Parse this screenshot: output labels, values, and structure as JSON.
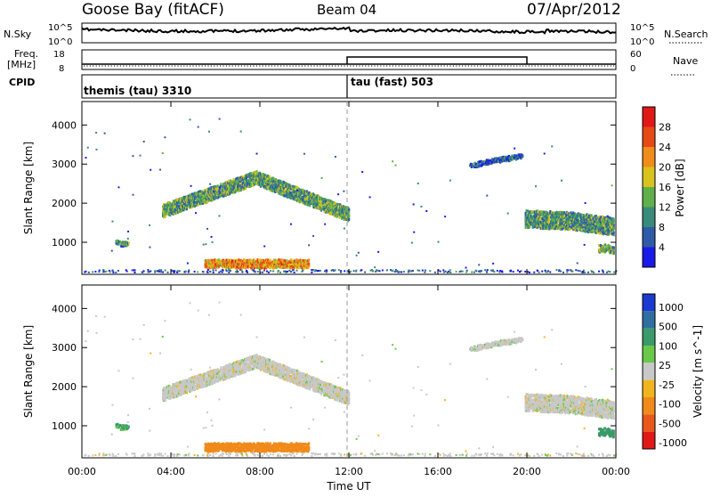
{
  "header": {
    "station": "Goose Bay (fitACF)",
    "beam": "Beam 04",
    "date": "07/Apr/2012"
  },
  "panels": {
    "nsky_label": "N.Sky",
    "nsky_ticks": [
      "10^5",
      "10^0"
    ],
    "nsearch_label": "N.Search",
    "nsearch_ticks": [
      "10^5",
      "10^0"
    ],
    "freq_label_1": "Freq.",
    "freq_label_2": "[MHz]",
    "freq_ticks": [
      "18",
      "8"
    ],
    "nave_label": "Nave",
    "nave_ticks": [
      "60",
      "0"
    ],
    "cpid_label": "CPID",
    "cpid_modes": [
      "themis (tau) 3310",
      "tau (fast) 503"
    ]
  },
  "chart_data": {
    "type": "heatmap",
    "xlabel": "Time UT",
    "x_ticks": [
      "00:00",
      "04:00",
      "08:00",
      "12:00",
      "16:00",
      "20:00",
      "00:00"
    ],
    "xlim_hours": [
      0,
      24
    ],
    "ylabel": "Slant Range [km]",
    "y_ticks": [
      1000,
      2000,
      3000,
      4000
    ],
    "ylim_km": [
      180,
      4600
    ],
    "power": {
      "colorbar_label": "Power [dB]",
      "colorbar_ticks": [
        "4",
        "8",
        "12",
        "16",
        "20",
        "24",
        "28"
      ],
      "colors": [
        "#1a1ae6",
        "#2f5aa8",
        "#3a8a7a",
        "#5fb04a",
        "#d8c21e",
        "#f08c1a",
        "#e64a14",
        "#e01818"
      ]
    },
    "velocity": {
      "colorbar_label": "Velocity [m s^-1]",
      "colorbar_ticks": [
        "1000",
        "500",
        "100",
        "25",
        "-25",
        "-100",
        "-500",
        "-1000"
      ],
      "colors": [
        "#1a3ad0",
        "#2f6ea0",
        "#3a9a6a",
        "#6ac84a",
        "#c8c8c8",
        "#f0b41e",
        "#f08a1a",
        "#e8581a",
        "#e01818"
      ]
    },
    "echo_regions": [
      {
        "t_start": 3.6,
        "t_end": 12.0,
        "range_center": [
          1850,
          2700,
          1750
        ],
        "thickness_km": 350,
        "power_db": 12,
        "velocity": 0
      },
      {
        "t_start": 5.5,
        "t_end": 10.2,
        "range_center": [
          500,
          500,
          500
        ],
        "thickness_km": 220,
        "power_db": 22,
        "velocity": -110
      },
      {
        "t_start": 19.9,
        "t_end": 23.9,
        "range_center": [
          1650,
          1600,
          1450
        ],
        "thickness_km": 450,
        "power_db": 11,
        "velocity": 0
      },
      {
        "t_start": 17.4,
        "t_end": 19.8,
        "range_center": [
          3000,
          3150,
          3250
        ],
        "thickness_km": 120,
        "power_db": 6,
        "velocity": 0
      },
      {
        "t_start": 1.5,
        "t_end": 2.1,
        "range_center": [
          1050,
          1000,
          1000
        ],
        "thickness_km": 120,
        "power_db": 10,
        "velocity": 60
      },
      {
        "t_start": 23.2,
        "t_end": 23.9,
        "range_center": [
          900,
          900,
          850
        ],
        "thickness_km": 200,
        "power_db": 14,
        "velocity": 110
      }
    ],
    "cpid_change_hour": 11.95
  }
}
